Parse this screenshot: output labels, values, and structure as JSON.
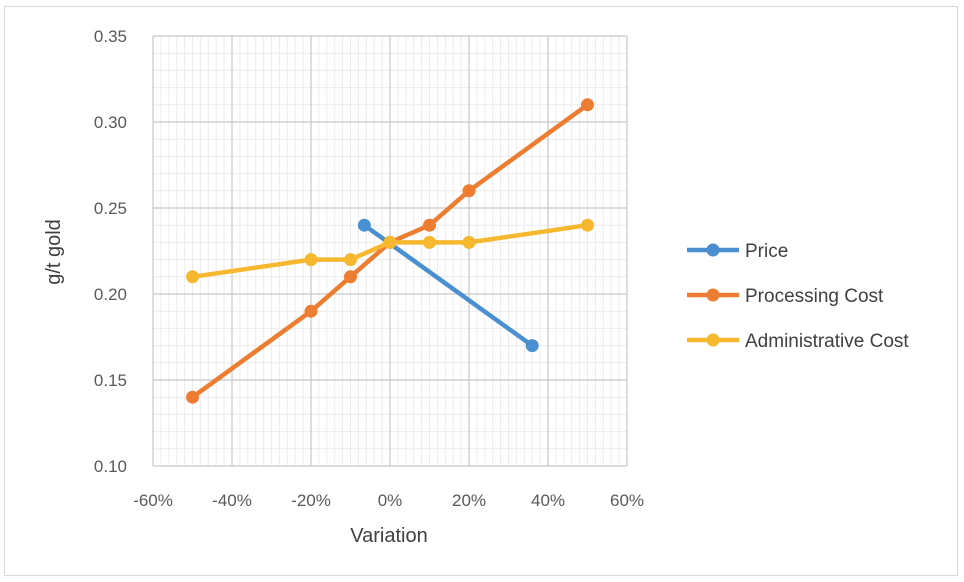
{
  "chart_data": {
    "type": "line",
    "xlabel": "Variation",
    "ylabel": "g/t gold",
    "xlim": [
      -60,
      60
    ],
    "ylim": [
      0.1,
      0.35
    ],
    "x_major_step": 20,
    "x_minor_step": 2,
    "y_major_step": 0.05,
    "y_minor_step": 0.01,
    "x_tick_labels": [
      "-60%",
      "-40%",
      "-20%",
      "0%",
      "20%",
      "40%",
      "60%"
    ],
    "y_tick_labels": [
      "0.10",
      "0.15",
      "0.20",
      "0.25",
      "0.30",
      "0.35"
    ],
    "grid": true,
    "legend_position": "right",
    "series": [
      {
        "name": "Price",
        "color": "#4a90d0",
        "points": [
          [
            -6.5,
            0.24
          ],
          [
            36,
            0.17
          ]
        ]
      },
      {
        "name": "Processing Cost",
        "color": "#ed7d31",
        "points": [
          [
            -50,
            0.14
          ],
          [
            -20,
            0.19
          ],
          [
            -10,
            0.21
          ],
          [
            0,
            0.23
          ],
          [
            10,
            0.24
          ],
          [
            20,
            0.26
          ],
          [
            50,
            0.31
          ]
        ]
      },
      {
        "name": "Administrative Cost",
        "color": "#f5b82e",
        "points": [
          [
            -50,
            0.21
          ],
          [
            -20,
            0.22
          ],
          [
            -10,
            0.22
          ],
          [
            0,
            0.23
          ],
          [
            10,
            0.23
          ],
          [
            20,
            0.23
          ],
          [
            50,
            0.24
          ]
        ]
      }
    ]
  }
}
